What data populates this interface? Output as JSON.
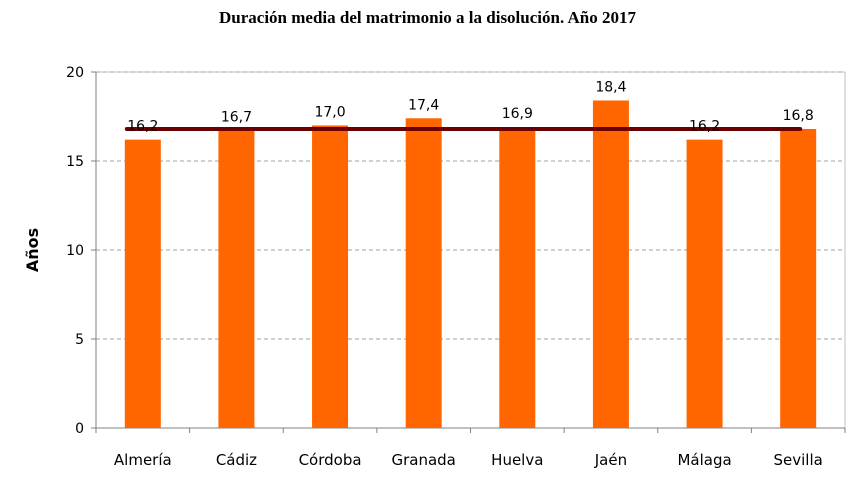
{
  "chart_data": {
    "type": "bar",
    "title": "Duración media del matrimonio a la disolución. Año 2017",
    "xlabel": "",
    "ylabel": "Años",
    "categories": [
      "Almería",
      "Cádiz",
      "Córdoba",
      "Granada",
      "Huelva",
      "Jaén",
      "Málaga",
      "Sevilla"
    ],
    "values": [
      16.2,
      16.7,
      17.0,
      17.4,
      16.9,
      18.4,
      16.2,
      16.8
    ],
    "data_labels": [
      "16,2",
      "16,7",
      "17,0",
      "17,4",
      "16,9",
      "18,4",
      "16,2",
      "16,8"
    ],
    "reference_line": {
      "value": 16.8,
      "color": "#6b0000"
    },
    "ylim": [
      0,
      20
    ],
    "yticks": [
      0,
      5,
      10,
      15,
      20
    ],
    "grid": "horizontal dashed",
    "legend": "none",
    "colors": {
      "bar": "#ff6600",
      "gridline": "#a0a0a0",
      "axis": "#808080",
      "plot_border": "#c0c0c0"
    }
  }
}
